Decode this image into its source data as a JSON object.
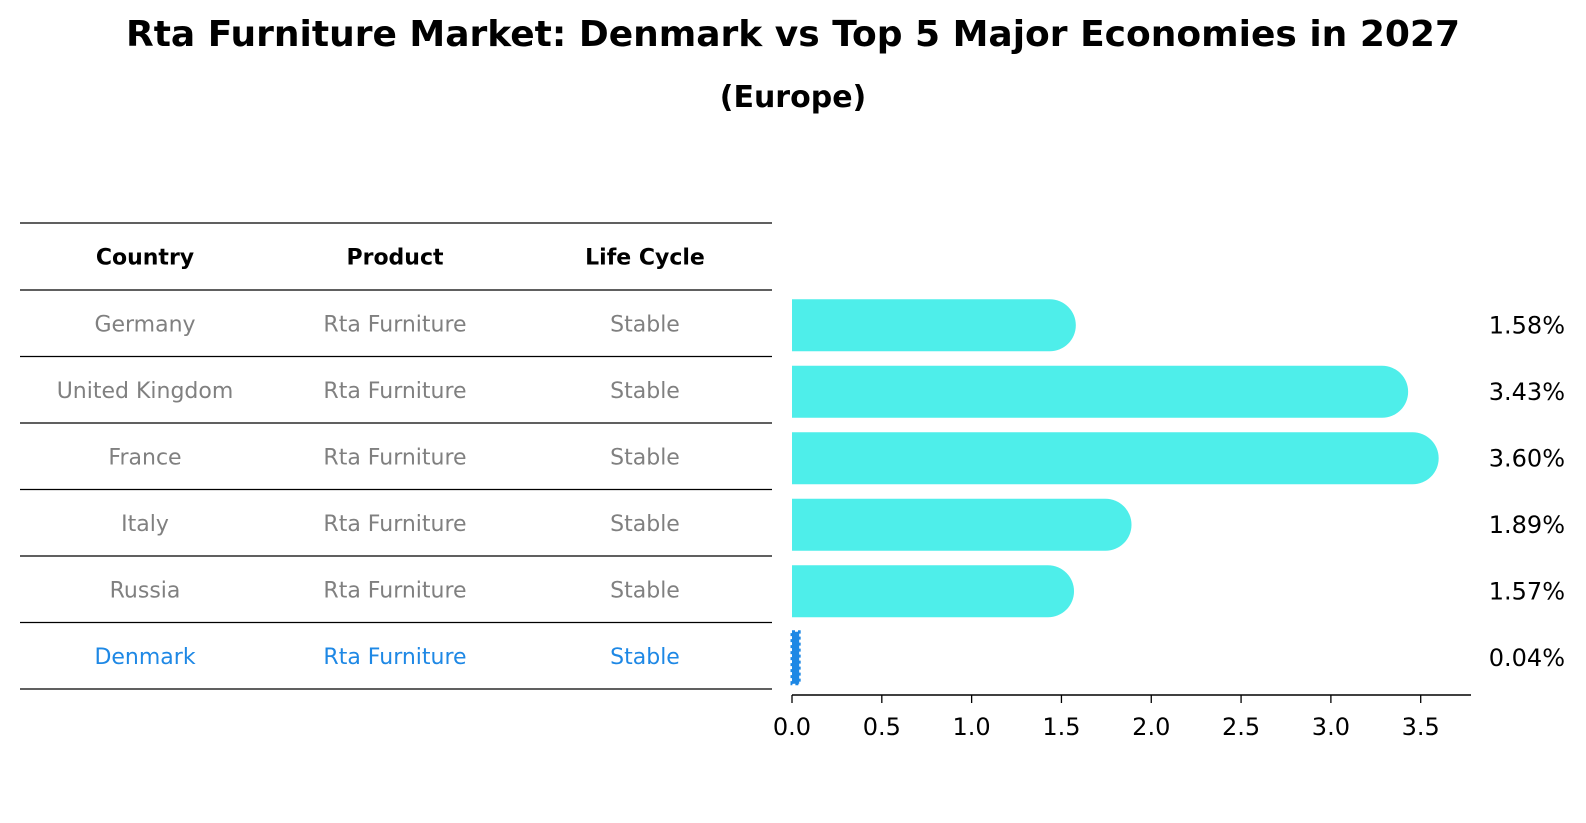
{
  "chart_data": {
    "type": "bar",
    "title": "Rta Furniture Market: Denmark vs Top 5 Major Economies in 2027",
    "subtitle": "(Europe)",
    "table": {
      "columns": [
        "Country",
        "Product",
        "Life Cycle"
      ],
      "rows": [
        [
          "Germany",
          "Rta Furniture",
          "Stable"
        ],
        [
          "United Kingdom",
          "Rta Furniture",
          "Stable"
        ],
        [
          "France",
          "Rta Furniture",
          "Stable"
        ],
        [
          "Italy",
          "Rta Furniture",
          "Stable"
        ],
        [
          "Russia",
          "Rta Furniture",
          "Stable"
        ],
        [
          "Denmark",
          "Rta Furniture",
          "Stable"
        ]
      ],
      "highlight_row": "Denmark"
    },
    "categories": [
      "Germany",
      "United Kingdom",
      "France",
      "Italy",
      "Russia",
      "Denmark"
    ],
    "values": [
      1.58,
      3.43,
      3.6,
      1.89,
      1.57,
      0.04
    ],
    "value_labels": [
      "1.58%",
      "3.43%",
      "3.60%",
      "1.89%",
      "1.57%",
      "0.04%"
    ],
    "xlim": [
      0,
      3.78
    ],
    "xticks": [
      0.0,
      0.5,
      1.0,
      1.5,
      2.0,
      2.5,
      3.0,
      3.5
    ],
    "xtick_labels": [
      "0.0",
      "0.5",
      "1.0",
      "1.5",
      "2.0",
      "2.5",
      "3.0",
      "3.5"
    ],
    "grid": false,
    "colors": {
      "bar": "#4eeeea",
      "highlight_bar": "#1e88e5",
      "highlight_text": "#1e88e5",
      "table_text": "#808080"
    }
  }
}
